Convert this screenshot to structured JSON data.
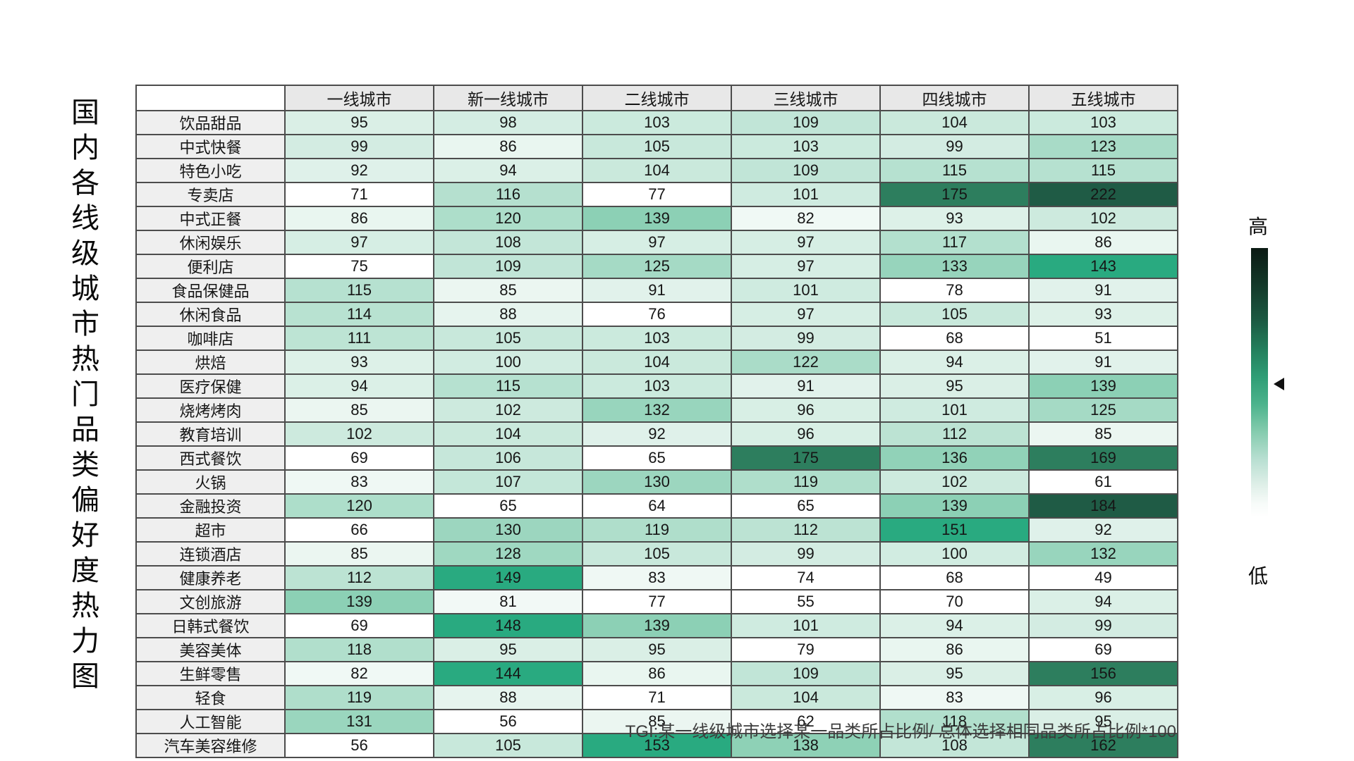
{
  "title": {
    "text": "国内各线级城市热门品类偏好度热力图"
  },
  "legend": {
    "high_label": "高",
    "low_label": "低"
  },
  "footer": {
    "note": "TGI:某一线级城市选择某一品类所占比例/ 总体选择相同品类所占比例*100"
  },
  "colors": {
    "cell_min": "#ffffff",
    "cell_mint_low": "#f4faf7",
    "cell_mint_high": "#8cd0b5",
    "cell_teal": "#29aa80",
    "cell_forest": "#2d7e5e",
    "cell_dark": "#1f5b45",
    "header_bg": "#e8e8e8",
    "row_label_bg": "#efefef",
    "border": "#4c4c4c"
  },
  "chart_data": {
    "type": "heatmap",
    "title": "国内各线级城市热门品类偏好度热力图",
    "note": "TGI:某一线级城市选择某一品类所占比例/ 总体选择相同品类所占比例*100",
    "legend": {
      "high": "高",
      "low": "低",
      "orientation": "vertical-right"
    },
    "value_range": [
      49,
      222
    ],
    "columns": [
      "一线城市",
      "新一线城市",
      "二线城市",
      "三线城市",
      "四线城市",
      "五线城市"
    ],
    "rows": [
      "饮品甜品",
      "中式快餐",
      "特色小吃",
      "专卖店",
      "中式正餐",
      "休闲娱乐",
      "便利店",
      "食品保健品",
      "休闲食品",
      "咖啡店",
      "烘焙",
      "医疗保健",
      "烧烤烤肉",
      "教育培训",
      "西式餐饮",
      "火锅",
      "金融投资",
      "超市",
      "连锁酒店",
      "健康养老",
      "文创旅游",
      "日韩式餐饮",
      "美容美体",
      "生鲜零售",
      "轻食",
      "人工智能",
      "汽车美容维修"
    ],
    "values": [
      [
        95,
        98,
        103,
        109,
        104,
        103
      ],
      [
        99,
        86,
        105,
        103,
        99,
        123
      ],
      [
        92,
        94,
        104,
        109,
        115,
        115
      ],
      [
        71,
        116,
        77,
        101,
        175,
        222
      ],
      [
        86,
        120,
        139,
        82,
        93,
        102
      ],
      [
        97,
        108,
        97,
        97,
        117,
        86
      ],
      [
        75,
        109,
        125,
        97,
        133,
        143
      ],
      [
        115,
        85,
        91,
        101,
        78,
        91
      ],
      [
        114,
        88,
        76,
        97,
        105,
        93
      ],
      [
        111,
        105,
        103,
        99,
        68,
        51
      ],
      [
        93,
        100,
        104,
        122,
        94,
        91
      ],
      [
        94,
        115,
        103,
        91,
        95,
        139
      ],
      [
        85,
        102,
        132,
        96,
        101,
        125
      ],
      [
        102,
        104,
        92,
        96,
        112,
        85
      ],
      [
        69,
        106,
        65,
        175,
        136,
        169
      ],
      [
        83,
        107,
        130,
        119,
        102,
        61
      ],
      [
        120,
        65,
        64,
        65,
        139,
        184
      ],
      [
        66,
        130,
        119,
        112,
        151,
        92
      ],
      [
        85,
        128,
        105,
        99,
        100,
        132
      ],
      [
        112,
        149,
        83,
        74,
        68,
        49
      ],
      [
        139,
        81,
        77,
        55,
        70,
        94
      ],
      [
        69,
        148,
        139,
        101,
        94,
        99
      ],
      [
        118,
        95,
        95,
        79,
        86,
        69
      ],
      [
        82,
        144,
        86,
        109,
        95,
        156
      ],
      [
        119,
        88,
        71,
        104,
        83,
        96
      ],
      [
        131,
        56,
        85,
        62,
        118,
        95
      ],
      [
        56,
        105,
        153,
        138,
        108,
        162
      ]
    ]
  }
}
